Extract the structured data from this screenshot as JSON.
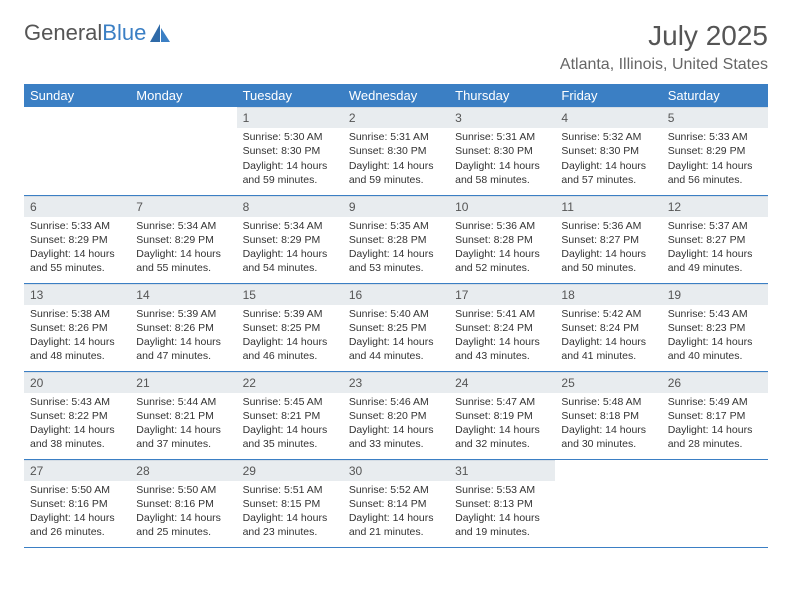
{
  "logo": {
    "text1": "General",
    "text2": "Blue"
  },
  "title": "July 2025",
  "location": "Atlanta, Illinois, United States",
  "colors": {
    "header_bar": "#3b7fc4",
    "daynum_bg": "#e8ecef",
    "row_border": "#3b7fc4",
    "text": "#333333",
    "title_text": "#555555"
  },
  "font": {
    "family": "Arial",
    "cell_size_pt": 8,
    "header_size_pt": 10,
    "title_size_pt": 21
  },
  "dayNames": [
    "Sunday",
    "Monday",
    "Tuesday",
    "Wednesday",
    "Thursday",
    "Friday",
    "Saturday"
  ],
  "weeks": [
    [
      null,
      null,
      {
        "n": "1",
        "sr": "5:30 AM",
        "ss": "8:30 PM",
        "dh": "14",
        "dm": "59"
      },
      {
        "n": "2",
        "sr": "5:31 AM",
        "ss": "8:30 PM",
        "dh": "14",
        "dm": "59"
      },
      {
        "n": "3",
        "sr": "5:31 AM",
        "ss": "8:30 PM",
        "dh": "14",
        "dm": "58"
      },
      {
        "n": "4",
        "sr": "5:32 AM",
        "ss": "8:30 PM",
        "dh": "14",
        "dm": "57"
      },
      {
        "n": "5",
        "sr": "5:33 AM",
        "ss": "8:29 PM",
        "dh": "14",
        "dm": "56"
      }
    ],
    [
      {
        "n": "6",
        "sr": "5:33 AM",
        "ss": "8:29 PM",
        "dh": "14",
        "dm": "55"
      },
      {
        "n": "7",
        "sr": "5:34 AM",
        "ss": "8:29 PM",
        "dh": "14",
        "dm": "55"
      },
      {
        "n": "8",
        "sr": "5:34 AM",
        "ss": "8:29 PM",
        "dh": "14",
        "dm": "54"
      },
      {
        "n": "9",
        "sr": "5:35 AM",
        "ss": "8:28 PM",
        "dh": "14",
        "dm": "53"
      },
      {
        "n": "10",
        "sr": "5:36 AM",
        "ss": "8:28 PM",
        "dh": "14",
        "dm": "52"
      },
      {
        "n": "11",
        "sr": "5:36 AM",
        "ss": "8:27 PM",
        "dh": "14",
        "dm": "50"
      },
      {
        "n": "12",
        "sr": "5:37 AM",
        "ss": "8:27 PM",
        "dh": "14",
        "dm": "49"
      }
    ],
    [
      {
        "n": "13",
        "sr": "5:38 AM",
        "ss": "8:26 PM",
        "dh": "14",
        "dm": "48"
      },
      {
        "n": "14",
        "sr": "5:39 AM",
        "ss": "8:26 PM",
        "dh": "14",
        "dm": "47"
      },
      {
        "n": "15",
        "sr": "5:39 AM",
        "ss": "8:25 PM",
        "dh": "14",
        "dm": "46"
      },
      {
        "n": "16",
        "sr": "5:40 AM",
        "ss": "8:25 PM",
        "dh": "14",
        "dm": "44"
      },
      {
        "n": "17",
        "sr": "5:41 AM",
        "ss": "8:24 PM",
        "dh": "14",
        "dm": "43"
      },
      {
        "n": "18",
        "sr": "5:42 AM",
        "ss": "8:24 PM",
        "dh": "14",
        "dm": "41"
      },
      {
        "n": "19",
        "sr": "5:43 AM",
        "ss": "8:23 PM",
        "dh": "14",
        "dm": "40"
      }
    ],
    [
      {
        "n": "20",
        "sr": "5:43 AM",
        "ss": "8:22 PM",
        "dh": "14",
        "dm": "38"
      },
      {
        "n": "21",
        "sr": "5:44 AM",
        "ss": "8:21 PM",
        "dh": "14",
        "dm": "37"
      },
      {
        "n": "22",
        "sr": "5:45 AM",
        "ss": "8:21 PM",
        "dh": "14",
        "dm": "35"
      },
      {
        "n": "23",
        "sr": "5:46 AM",
        "ss": "8:20 PM",
        "dh": "14",
        "dm": "33"
      },
      {
        "n": "24",
        "sr": "5:47 AM",
        "ss": "8:19 PM",
        "dh": "14",
        "dm": "32"
      },
      {
        "n": "25",
        "sr": "5:48 AM",
        "ss": "8:18 PM",
        "dh": "14",
        "dm": "30"
      },
      {
        "n": "26",
        "sr": "5:49 AM",
        "ss": "8:17 PM",
        "dh": "14",
        "dm": "28"
      }
    ],
    [
      {
        "n": "27",
        "sr": "5:50 AM",
        "ss": "8:16 PM",
        "dh": "14",
        "dm": "26"
      },
      {
        "n": "28",
        "sr": "5:50 AM",
        "ss": "8:16 PM",
        "dh": "14",
        "dm": "25"
      },
      {
        "n": "29",
        "sr": "5:51 AM",
        "ss": "8:15 PM",
        "dh": "14",
        "dm": "23"
      },
      {
        "n": "30",
        "sr": "5:52 AM",
        "ss": "8:14 PM",
        "dh": "14",
        "dm": "21"
      },
      {
        "n": "31",
        "sr": "5:53 AM",
        "ss": "8:13 PM",
        "dh": "14",
        "dm": "19"
      },
      null,
      null
    ]
  ],
  "labels": {
    "sunrise": "Sunrise:",
    "sunset": "Sunset:",
    "daylight": "Daylight:",
    "hours": "hours",
    "and": "and",
    "minutes": "minutes."
  }
}
